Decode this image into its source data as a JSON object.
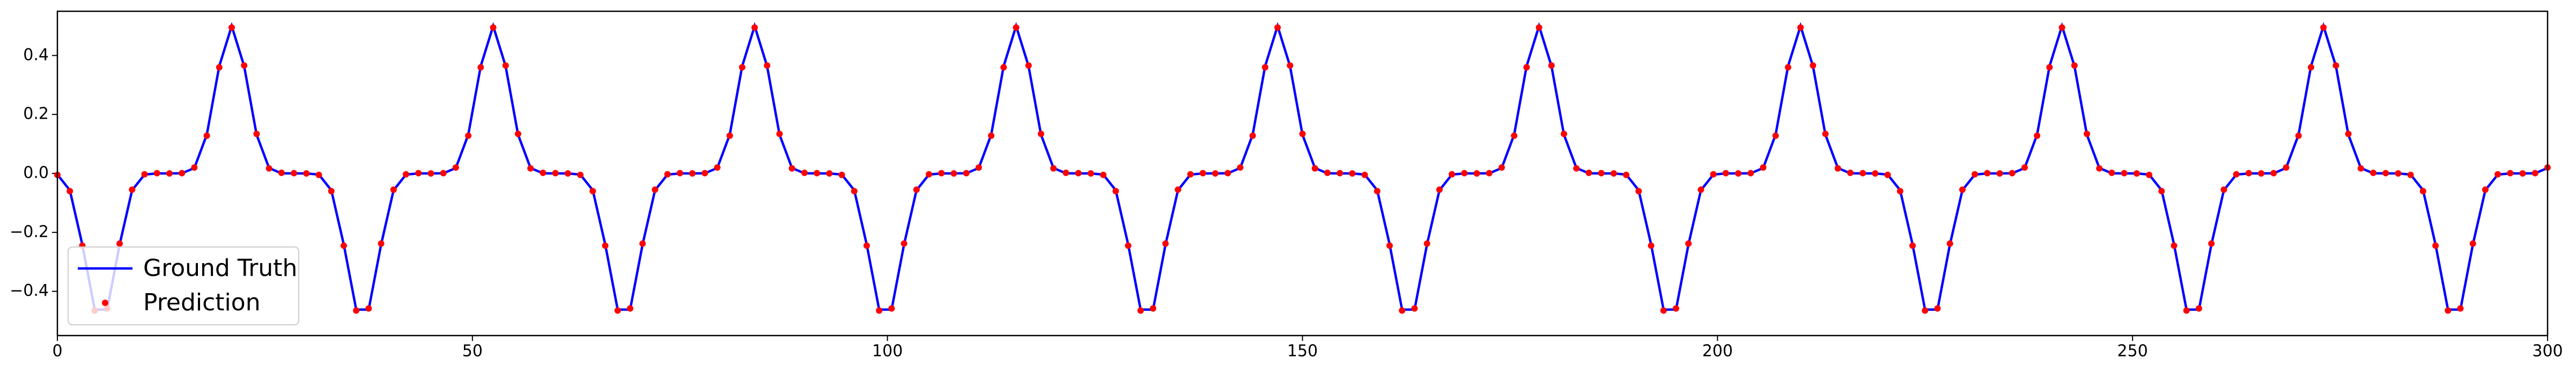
{
  "chart_data": {
    "type": "line",
    "x": [
      0,
      1.5,
      3,
      4.5,
      6,
      7.5,
      9,
      10.5,
      12,
      13.5,
      15,
      16.5,
      18,
      19.5,
      21,
      22.5,
      24,
      25.5,
      27,
      28.5,
      30,
      31.5,
      33,
      34.5,
      36,
      37.5,
      39,
      40.5,
      42,
      43.5,
      45,
      46.5,
      48,
      49.5,
      51,
      52.5,
      54,
      55.5,
      57,
      58.5,
      60,
      61.5,
      63,
      64.5,
      66,
      67.5,
      69,
      70.5,
      72,
      73.5,
      75,
      76.5,
      78,
      79.5,
      81,
      82.5,
      84,
      85.5,
      87,
      88.5,
      90,
      91.5,
      93,
      94.5,
      96,
      97.5,
      99,
      100.5,
      102,
      103.5,
      105,
      106.5,
      108,
      109.5,
      111,
      112.5,
      114,
      115.5,
      117,
      118.5,
      120,
      121.5,
      123,
      124.5,
      126,
      127.5,
      129,
      130.5,
      132,
      133.5,
      135,
      136.5,
      138,
      139.5,
      141,
      142.5,
      144,
      145.5,
      147,
      148.5,
      150,
      151.5,
      153,
      154.5,
      156,
      157.5,
      159,
      160.5,
      162,
      163.5,
      165,
      166.5,
      168,
      169.5,
      171,
      172.5,
      174,
      175.5,
      177,
      178.5,
      180,
      181.5,
      183,
      184.5,
      186,
      187.5,
      189,
      190.5,
      192,
      193.5,
      195,
      196.5,
      198,
      199.5,
      201,
      202.5,
      204,
      205.5,
      207,
      208.5,
      210,
      211.5,
      213,
      214.5,
      216,
      217.5,
      219,
      220.5,
      222,
      223.5,
      225,
      226.5,
      228,
      229.5,
      231,
      232.5,
      234,
      235.5,
      237,
      238.5,
      240,
      241.5,
      243,
      244.5,
      246,
      247.5,
      249,
      250.5,
      252,
      253.5,
      255,
      256.5,
      258,
      259.5,
      261,
      262.5,
      264,
      265.5,
      267,
      268.5,
      270,
      271.5,
      273,
      274.5,
      276,
      277.5,
      279,
      280.5,
      282,
      283.5,
      285,
      286.5,
      288,
      289.5,
      291,
      292.5,
      294,
      295.5,
      297,
      298.5,
      300
    ],
    "series": [
      {
        "name": "Ground Truth",
        "color": "#0000ff",
        "values": [
          -0.0039,
          -0.057,
          -0.241,
          -0.462,
          -0.462,
          -0.241,
          -0.057,
          -0.0039,
          0,
          0,
          0.0004,
          0.0183,
          0.1314,
          0.3639,
          0.5,
          0.3639,
          0.1314,
          0.0183,
          0.0004,
          0,
          0,
          -0.0039,
          -0.057,
          -0.241,
          -0.462,
          -0.462,
          -0.241,
          -0.057,
          -0.0039,
          0,
          0,
          0.0004,
          0.0183,
          0.1314,
          0.3639,
          0.5,
          0.3639,
          0.1314,
          0.0183,
          0.0004,
          0,
          0,
          -0.0039,
          -0.057,
          -0.241,
          -0.462,
          -0.462,
          -0.241,
          -0.057,
          -0.0039,
          0,
          0,
          0.0004,
          0.0183,
          0.1314,
          0.3639,
          0.5,
          0.3639,
          0.1314,
          0.0183,
          0.0004,
          0,
          0,
          -0.0039,
          -0.057,
          -0.241,
          -0.462,
          -0.462,
          -0.241,
          -0.057,
          -0.0039,
          0,
          0,
          0.0004,
          0.0183,
          0.1314,
          0.3639,
          0.5,
          0.3639,
          0.1314,
          0.0183,
          0.0004,
          0,
          0,
          -0.0039,
          -0.057,
          -0.241,
          -0.462,
          -0.462,
          -0.241,
          -0.057,
          -0.0039,
          0,
          0,
          0.0004,
          0.0183,
          0.1314,
          0.3639,
          0.5,
          0.3639,
          0.1314,
          0.0183,
          0.0004,
          0,
          0,
          -0.0039,
          -0.057,
          -0.241,
          -0.462,
          -0.462,
          -0.241,
          -0.057,
          -0.0039,
          0,
          0,
          0.0004,
          0.0183,
          0.1314,
          0.3639,
          0.5,
          0.3639,
          0.1314,
          0.0183,
          0.0004,
          0,
          0,
          -0.0039,
          -0.057,
          -0.241,
          -0.462,
          -0.462,
          -0.241,
          -0.057,
          -0.0039,
          0,
          0,
          0.0004,
          0.0183,
          0.1314,
          0.3639,
          0.5,
          0.3639,
          0.1314,
          0.0183,
          0.0004,
          0,
          0,
          -0.0039,
          -0.057,
          -0.241,
          -0.462,
          -0.462,
          -0.241,
          -0.057,
          -0.0039,
          0,
          0,
          0.0004,
          0.0183,
          0.1314,
          0.3639,
          0.5,
          0.3639,
          0.1314,
          0.0183,
          0.0004,
          0,
          0,
          -0.0039,
          -0.057,
          -0.241,
          -0.462,
          -0.462,
          -0.241,
          -0.057,
          -0.0039,
          0,
          0,
          0.0004,
          0.0183,
          0.1314,
          0.3639,
          0.5,
          0.3639,
          0.1314,
          0.0183,
          0.0004,
          0,
          0,
          -0.0039,
          -0.057,
          -0.241,
          -0.462,
          -0.462,
          -0.241,
          -0.057,
          -0.0039,
          0,
          0,
          0.0004,
          0.0183
        ]
      },
      {
        "name": "Prediction",
        "color": "#ff0000",
        "values": [
          -0.005,
          -0.06,
          -0.245,
          -0.465,
          -0.458,
          -0.238,
          -0.055,
          -0.003,
          0.001,
          0,
          0.001,
          0.02,
          0.128,
          0.36,
          0.495,
          0.366,
          0.134,
          0.017,
          0.002,
          0.001,
          0,
          -0.005,
          -0.06,
          -0.245,
          -0.465,
          -0.458,
          -0.238,
          -0.055,
          -0.003,
          0.001,
          0,
          0.001,
          0.02,
          0.128,
          0.36,
          0.495,
          0.366,
          0.134,
          0.017,
          0.002,
          0.001,
          0,
          -0.005,
          -0.06,
          -0.245,
          -0.465,
          -0.458,
          -0.238,
          -0.055,
          -0.003,
          0.001,
          0,
          0.001,
          0.02,
          0.128,
          0.36,
          0.495,
          0.366,
          0.134,
          0.017,
          0.002,
          0.001,
          0,
          -0.005,
          -0.06,
          -0.245,
          -0.465,
          -0.458,
          -0.238,
          -0.055,
          -0.003,
          0.001,
          0,
          0.001,
          0.02,
          0.128,
          0.36,
          0.495,
          0.366,
          0.134,
          0.017,
          0.002,
          0.001,
          0,
          -0.005,
          -0.06,
          -0.245,
          -0.465,
          -0.458,
          -0.238,
          -0.055,
          -0.003,
          0.001,
          0,
          0.001,
          0.02,
          0.128,
          0.36,
          0.495,
          0.366,
          0.134,
          0.017,
          0.002,
          0.001,
          0,
          -0.005,
          -0.06,
          -0.245,
          -0.465,
          -0.458,
          -0.238,
          -0.055,
          -0.003,
          0.001,
          0,
          0.001,
          0.02,
          0.128,
          0.36,
          0.495,
          0.366,
          0.134,
          0.017,
          0.002,
          0.001,
          0,
          -0.005,
          -0.06,
          -0.245,
          -0.465,
          -0.458,
          -0.238,
          -0.055,
          -0.003,
          0.001,
          0,
          0.001,
          0.02,
          0.128,
          0.36,
          0.495,
          0.366,
          0.134,
          0.017,
          0.002,
          0.001,
          0,
          -0.005,
          -0.06,
          -0.245,
          -0.465,
          -0.458,
          -0.238,
          -0.055,
          -0.003,
          0.001,
          0,
          0.001,
          0.02,
          0.128,
          0.36,
          0.495,
          0.366,
          0.134,
          0.017,
          0.002,
          0.001,
          0,
          -0.005,
          -0.06,
          -0.245,
          -0.465,
          -0.458,
          -0.238,
          -0.055,
          -0.003,
          0.001,
          0,
          0.001,
          0.02,
          0.128,
          0.36,
          0.495,
          0.366,
          0.134,
          0.017,
          0.002,
          0.001,
          0,
          -0.005,
          -0.06,
          -0.245,
          -0.465,
          -0.458,
          -0.238,
          -0.055,
          -0.003,
          0.001,
          0,
          0.001,
          0.02
        ]
      }
    ],
    "xlim": [
      0,
      300
    ],
    "xticks": [
      0,
      50,
      100,
      150,
      200,
      250,
      300
    ],
    "ylim": [
      -0.55,
      0.55
    ],
    "yticks": [
      {
        "value": -0.4,
        "label": "−0.4"
      },
      {
        "value": -0.2,
        "label": "−0.2"
      },
      {
        "value": 0,
        "label": "0.0"
      },
      {
        "value": 0.2,
        "label": "0.2"
      },
      {
        "value": 0.4,
        "label": "0.4"
      }
    ],
    "grid": false,
    "legend": "lower left"
  }
}
